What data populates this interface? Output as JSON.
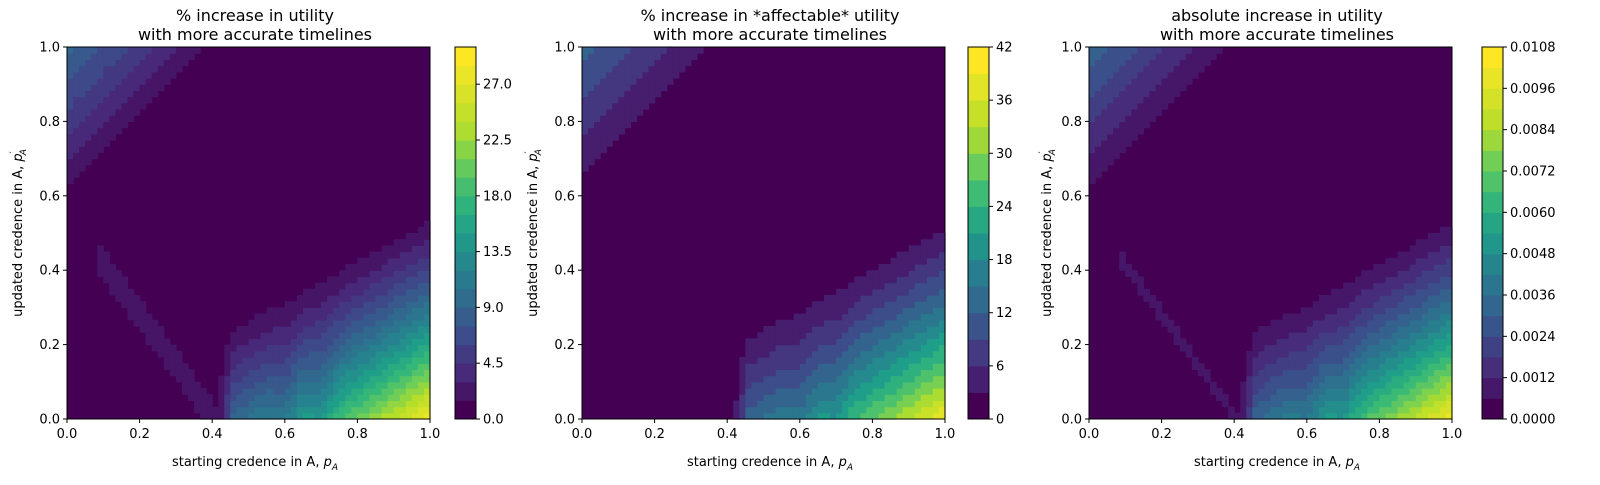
{
  "chart_data": [
    {
      "type": "contour",
      "title_line1": "% increase in utility",
      "title_line2": "with more accurate timelines",
      "xlabel_text": "starting credence in A, ",
      "xlabel_math": "p",
      "xlabel_sub": "A",
      "ylabel_text": "updated credence in A, ",
      "ylabel_math": "p",
      "ylabel_sub": "A",
      "ylabel_prime": "′",
      "xlim": [
        0.0,
        1.0
      ],
      "ylim": [
        0.0,
        1.0
      ],
      "x_ticks": [
        "0.0",
        "0.2",
        "0.4",
        "0.6",
        "0.8",
        "1.0"
      ],
      "y_ticks": [
        "0.0",
        "0.2",
        "0.4",
        "0.6",
        "0.8",
        "1.0"
      ],
      "colorbar_range": [
        0.0,
        30.0
      ],
      "colorbar_ticks": [
        "0.0",
        "4.5",
        "9.0",
        "13.5",
        "18.0",
        "22.5",
        "27.0"
      ],
      "colorbar_levels": 20,
      "colormap": "viridis"
    },
    {
      "type": "contour",
      "title_line1": "% increase in *affectable* utility",
      "title_line2": "with more accurate timelines",
      "xlabel_text": "starting credence in A, ",
      "xlabel_math": "p",
      "xlabel_sub": "A",
      "ylabel_text": "updated credence in A, ",
      "ylabel_math": "p",
      "ylabel_sub": "A",
      "ylabel_prime": "′",
      "xlim": [
        0.0,
        1.0
      ],
      "ylim": [
        0.0,
        1.0
      ],
      "x_ticks": [
        "0.0",
        "0.2",
        "0.4",
        "0.6",
        "0.8",
        "1.0"
      ],
      "y_ticks": [
        "0.0",
        "0.2",
        "0.4",
        "0.6",
        "0.8",
        "1.0"
      ],
      "colorbar_range": [
        0,
        42
      ],
      "colorbar_ticks": [
        "0",
        "6",
        "12",
        "18",
        "24",
        "30",
        "36",
        "42"
      ],
      "colorbar_levels": 14,
      "colormap": "viridis"
    },
    {
      "type": "contour",
      "title_line1": "absolute increase in utility",
      "title_line2": "with more accurate timelines",
      "xlabel_text": "starting credence in A, ",
      "xlabel_math": "p",
      "xlabel_sub": "A",
      "ylabel_text": "updated credence in A, ",
      "ylabel_math": "p",
      "ylabel_sub": "A",
      "ylabel_prime": "′",
      "xlim": [
        0.0,
        1.0
      ],
      "ylim": [
        0.0,
        1.0
      ],
      "x_ticks": [
        "0.0",
        "0.2",
        "0.4",
        "0.6",
        "0.8",
        "1.0"
      ],
      "y_ticks": [
        "0.0",
        "0.2",
        "0.4",
        "0.6",
        "0.8",
        "1.0"
      ],
      "colorbar_range": [
        0.0,
        0.0108
      ],
      "colorbar_ticks": [
        "0.0000",
        "0.0012",
        "0.0024",
        "0.0036",
        "0.0048",
        "0.0060",
        "0.0072",
        "0.0084",
        "0.0096",
        "0.0108"
      ],
      "colorbar_levels": 18,
      "colormap": "viridis"
    }
  ]
}
